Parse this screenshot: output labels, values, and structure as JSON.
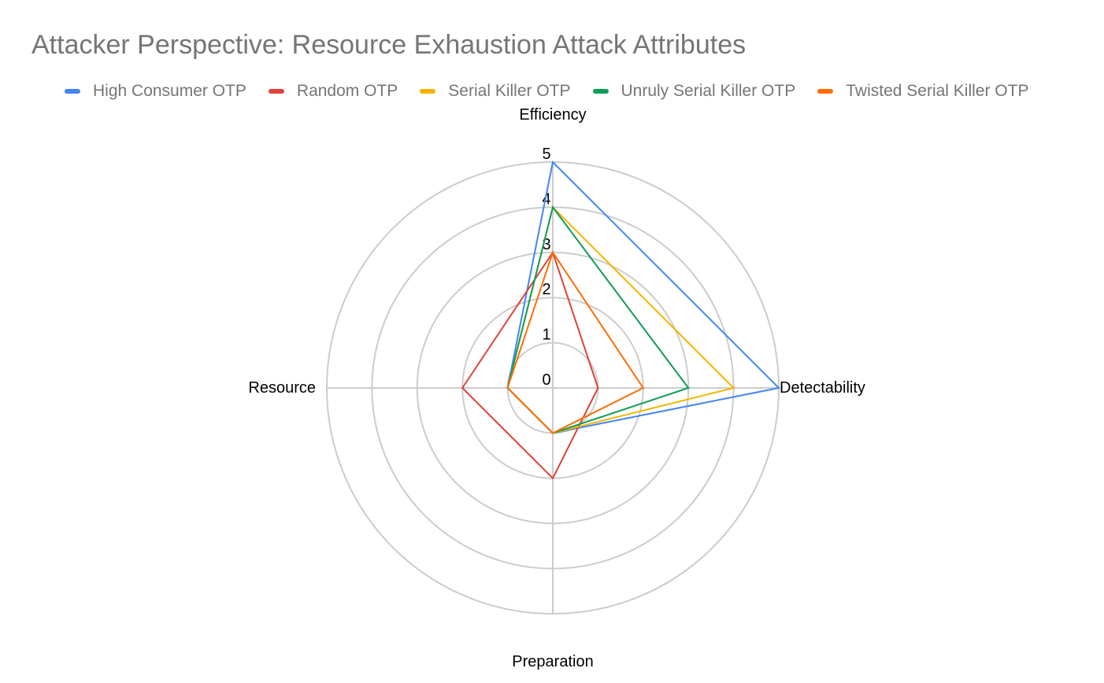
{
  "chart_data": {
    "type": "radar",
    "title": "Attacker Perspective: Resource Exhaustion Attack Attributes",
    "axes": [
      "Efficiency",
      "Detectability",
      "Preparation",
      "Resource"
    ],
    "ticks": [
      "0",
      "1",
      "2",
      "3",
      "4",
      "5"
    ],
    "range": [
      0,
      5
    ],
    "grid": true,
    "legend_position": "top",
    "series": [
      {
        "name": "High Consumer OTP",
        "color": "#4285F4",
        "values": [
          5,
          5,
          1,
          1
        ]
      },
      {
        "name": "Random OTP",
        "color": "#DB4437",
        "values": [
          3,
          1,
          2,
          2
        ]
      },
      {
        "name": "Serial Killer OTP",
        "color": "#F4B400",
        "values": [
          4,
          4,
          1,
          1
        ]
      },
      {
        "name": "Unruly Serial Killer OTP",
        "color": "#0F9D58",
        "values": [
          4,
          3,
          1,
          1
        ]
      },
      {
        "name": "Twisted Serial Killer OTP",
        "color": "#FF6D01",
        "values": [
          3,
          2,
          1,
          1
        ]
      }
    ]
  }
}
